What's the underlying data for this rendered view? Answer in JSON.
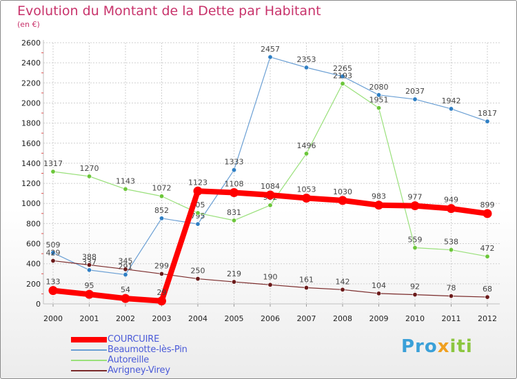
{
  "chart_data": {
    "type": "line",
    "title": "Evolution du Montant de la Dette par Habitant",
    "subtitle": "(en €)",
    "xlabel": "",
    "ylabel": "",
    "categories": [
      "2000",
      "2001",
      "2002",
      "2003",
      "2004",
      "2005",
      "2006",
      "2007",
      "2008",
      "2009",
      "2010",
      "2011",
      "2012"
    ],
    "ylim": [
      0,
      2600
    ],
    "yticks": [
      0,
      200,
      400,
      600,
      800,
      1000,
      1200,
      1400,
      1600,
      1800,
      2000,
      2200,
      2400,
      2600
    ],
    "grid": true,
    "legend_position": "bottom-left",
    "series": [
      {
        "name": "COURCUIRE",
        "color": "#ff0000",
        "values": [
          133,
          95,
          54,
          29,
          1123,
          1108,
          1084,
          1053,
          1030,
          983,
          977,
          949,
          899
        ]
      },
      {
        "name": "Beaumotte-lès-Pin",
        "color": "#6a9fd4",
        "values": [
          509,
          337,
          291,
          852,
          795,
          1333,
          2457,
          2353,
          2265,
          2080,
          2037,
          1942,
          1817
        ]
      },
      {
        "name": "Autoreille",
        "color": "#99e07a",
        "values": [
          1317,
          1270,
          1143,
          1072,
          905,
          831,
          982,
          1496,
          2193,
          1951,
          559,
          538,
          472
        ]
      },
      {
        "name": "Avrigney-Virey",
        "color": "#7a2a2a",
        "values": [
          429,
          388,
          345,
          299,
          250,
          219,
          190,
          161,
          142,
          104,
          92,
          78,
          68
        ]
      }
    ]
  },
  "brand": {
    "part1": "Pro",
    "part2": "x",
    "part3": "iti"
  }
}
